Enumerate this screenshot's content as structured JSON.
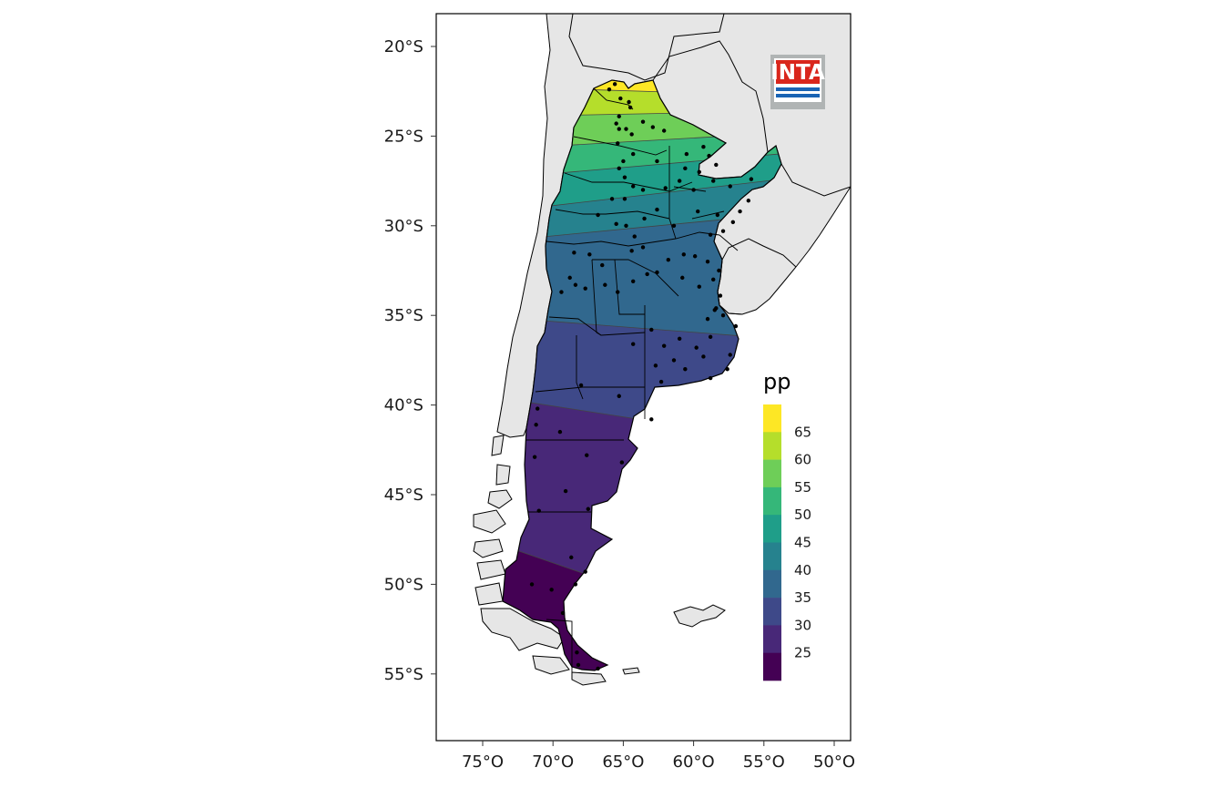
{
  "y_axis": {
    "ticks": [
      {
        "lat": -20,
        "label": "20°S"
      },
      {
        "lat": -25,
        "label": "25°S"
      },
      {
        "lat": -30,
        "label": "30°S"
      },
      {
        "lat": -35,
        "label": "35°S"
      },
      {
        "lat": -40,
        "label": "40°S"
      },
      {
        "lat": -45,
        "label": "45°S"
      },
      {
        "lat": -50,
        "label": "50°S"
      },
      {
        "lat": -55,
        "label": "55°S"
      }
    ]
  },
  "x_axis": {
    "ticks": [
      {
        "lon": -75,
        "label": "75°O"
      },
      {
        "lon": -70,
        "label": "70°O"
      },
      {
        "lon": -65,
        "label": "65°O"
      },
      {
        "lon": -60,
        "label": "60°O"
      },
      {
        "lon": -55,
        "label": "55°O"
      },
      {
        "lon": -50,
        "label": "50°O"
      }
    ]
  },
  "legend": {
    "title": "pp",
    "bins": [
      {
        "upper": 70,
        "color": "#FDE725"
      },
      {
        "upper": 65,
        "color": "#B5DE2B"
      },
      {
        "upper": 60,
        "color": "#6ECE58"
      },
      {
        "upper": 55,
        "color": "#35B779"
      },
      {
        "upper": 50,
        "color": "#1F9E89"
      },
      {
        "upper": 45,
        "color": "#26828E"
      },
      {
        "upper": 40,
        "color": "#31688E"
      },
      {
        "upper": 35,
        "color": "#3E4989"
      },
      {
        "upper": 30,
        "color": "#482878"
      },
      {
        "upper": 25,
        "color": "#440154"
      }
    ],
    "labels": [
      "65",
      "60",
      "55",
      "50",
      "45",
      "40",
      "35",
      "30",
      "25"
    ]
  },
  "logo": {
    "text": "INTA",
    "text_color": "#ffffff",
    "bg_color": "#d9261c",
    "stripe_color": "#1a64b4",
    "frame_color": "#b0b4b4"
  },
  "colors": {
    "land": "#e6e6e6",
    "border": "#000000",
    "station": "#000000",
    "contour": "#444444"
  },
  "stations": [
    [
      -66.0,
      -22.4
    ],
    [
      -65.6,
      -22.1
    ],
    [
      -65.2,
      -22.9
    ],
    [
      -64.6,
      -23.1
    ],
    [
      -64.5,
      -23.4
    ],
    [
      -65.3,
      -23.9
    ],
    [
      -65.5,
      -24.3
    ],
    [
      -65.3,
      -24.6
    ],
    [
      -64.8,
      -24.6
    ],
    [
      -64.4,
      -24.9
    ],
    [
      -63.6,
      -24.2
    ],
    [
      -62.9,
      -24.5
    ],
    [
      -65.4,
      -25.4
    ],
    [
      -64.3,
      -26.0
    ],
    [
      -65.3,
      -26.8
    ],
    [
      -65.0,
      -26.4
    ],
    [
      -64.9,
      -27.3
    ],
    [
      -64.3,
      -27.8
    ],
    [
      -62.1,
      -24.7
    ],
    [
      -60.5,
      -26.0
    ],
    [
      -59.3,
      -25.6
    ],
    [
      -58.9,
      -26.1
    ],
    [
      -58.4,
      -26.6
    ],
    [
      -59.6,
      -27.0
    ],
    [
      -61.0,
      -27.5
    ],
    [
      -60.6,
      -26.8
    ],
    [
      -62.6,
      -26.4
    ],
    [
      -63.6,
      -28.0
    ],
    [
      -64.9,
      -28.5
    ],
    [
      -65.8,
      -28.5
    ],
    [
      -66.8,
      -29.4
    ],
    [
      -65.5,
      -29.9
    ],
    [
      -64.8,
      -30.0
    ],
    [
      -64.2,
      -30.6
    ],
    [
      -64.4,
      -31.4
    ],
    [
      -63.6,
      -31.2
    ],
    [
      -62.6,
      -29.1
    ],
    [
      -61.4,
      -30.0
    ],
    [
      -60.7,
      -31.6
    ],
    [
      -59.7,
      -29.2
    ],
    [
      -58.8,
      -30.5
    ],
    [
      -58.3,
      -29.4
    ],
    [
      -57.9,
      -30.3
    ],
    [
      -57.2,
      -29.8
    ],
    [
      -56.7,
      -29.2
    ],
    [
      -56.1,
      -28.6
    ],
    [
      -55.9,
      -27.4
    ],
    [
      -57.4,
      -27.8
    ],
    [
      -58.6,
      -27.5
    ],
    [
      -60.0,
      -28.0
    ],
    [
      -62.0,
      -27.9
    ],
    [
      -63.5,
      -29.6
    ],
    [
      -66.5,
      -32.2
    ],
    [
      -67.4,
      -31.6
    ],
    [
      -68.5,
      -31.5
    ],
    [
      -68.8,
      -32.9
    ],
    [
      -68.4,
      -33.3
    ],
    [
      -69.4,
      -33.7
    ],
    [
      -67.7,
      -33.5
    ],
    [
      -66.3,
      -33.3
    ],
    [
      -65.4,
      -33.7
    ],
    [
      -64.3,
      -33.1
    ],
    [
      -63.3,
      -32.7
    ],
    [
      -62.6,
      -32.6
    ],
    [
      -61.8,
      -31.9
    ],
    [
      -60.8,
      -32.9
    ],
    [
      -59.6,
      -33.4
    ],
    [
      -58.6,
      -33.0
    ],
    [
      -58.2,
      -32.5
    ],
    [
      -59.0,
      -32.0
    ],
    [
      -59.9,
      -31.7
    ],
    [
      -58.1,
      -33.9
    ],
    [
      -58.4,
      -34.6
    ],
    [
      -58.5,
      -34.7
    ],
    [
      -59.0,
      -35.2
    ],
    [
      -57.9,
      -35.0
    ],
    [
      -57.0,
      -35.6
    ],
    [
      -58.8,
      -36.2
    ],
    [
      -59.8,
      -36.8
    ],
    [
      -61.0,
      -36.3
    ],
    [
      -62.1,
      -36.7
    ],
    [
      -63.0,
      -35.8
    ],
    [
      -64.3,
      -36.6
    ],
    [
      -62.7,
      -37.8
    ],
    [
      -61.4,
      -37.5
    ],
    [
      -60.6,
      -38.0
    ],
    [
      -59.3,
      -37.3
    ],
    [
      -58.8,
      -38.5
    ],
    [
      -57.6,
      -38.0
    ],
    [
      -57.4,
      -37.2
    ],
    [
      -62.3,
      -38.7
    ],
    [
      -63.0,
      -40.8
    ],
    [
      -65.3,
      -39.5
    ],
    [
      -68.0,
      -38.9
    ],
    [
      -71.1,
      -40.2
    ],
    [
      -71.2,
      -41.1
    ],
    [
      -69.5,
      -41.5
    ],
    [
      -71.3,
      -42.9
    ],
    [
      -67.6,
      -42.8
    ],
    [
      -65.1,
      -43.2
    ],
    [
      -69.1,
      -44.8
    ],
    [
      -67.5,
      -45.8
    ],
    [
      -71.0,
      -45.9
    ],
    [
      -68.7,
      -48.5
    ],
    [
      -67.7,
      -49.3
    ],
    [
      -70.1,
      -50.3
    ],
    [
      -68.4,
      -50.0
    ],
    [
      -71.5,
      -50.0
    ],
    [
      -69.3,
      -51.6
    ],
    [
      -68.3,
      -53.8
    ],
    [
      -68.2,
      -54.5
    ],
    [
      -66.8,
      -54.7
    ]
  ]
}
